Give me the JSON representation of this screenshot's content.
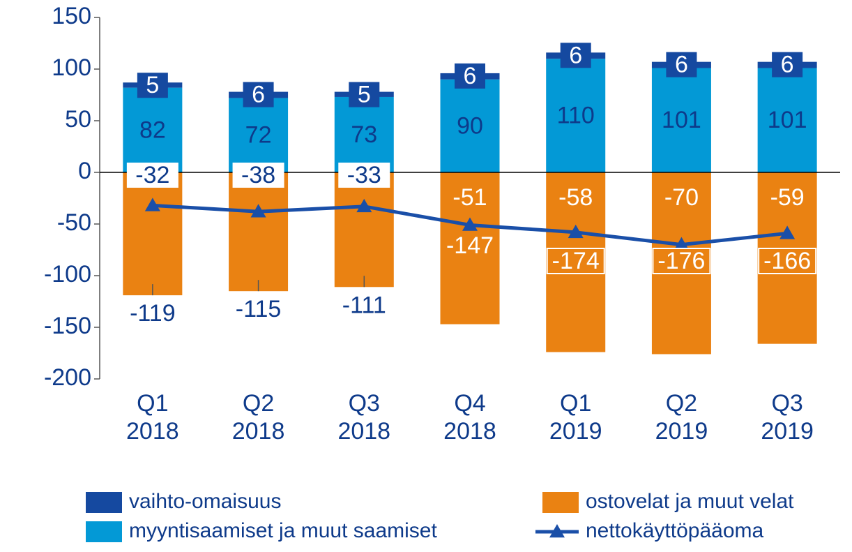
{
  "chart_data": {
    "type": "bar",
    "categories": [
      "Q1\n2018",
      "Q2\n2018",
      "Q3\n2018",
      "Q4\n2018",
      "Q1\n2019",
      "Q2\n2019",
      "Q3\n2019"
    ],
    "series": [
      {
        "name": "vaihto-omaisuus",
        "color": "#1549a0",
        "values": [
          5,
          6,
          5,
          6,
          6,
          6,
          6
        ]
      },
      {
        "name": "myyntisaamiset ja muut saamiset",
        "color": "#0399d6",
        "values": [
          82,
          72,
          73,
          90,
          110,
          101,
          101
        ]
      },
      {
        "name": "ostovelat ja muut velat",
        "color": "#ea8212",
        "values": [
          -119,
          -115,
          -111,
          -147,
          -174,
          -176,
          -166
        ]
      },
      {
        "name": "nettokäyttöpääoma",
        "type": "line",
        "color": "#1a4fa8",
        "values": [
          -32,
          -38,
          -33,
          -51,
          -58,
          -70,
          -59
        ]
      }
    ],
    "ylim": [
      -200,
      150
    ],
    "yticks": [
      -200,
      -150,
      -100,
      -50,
      0,
      50,
      100,
      150
    ]
  }
}
